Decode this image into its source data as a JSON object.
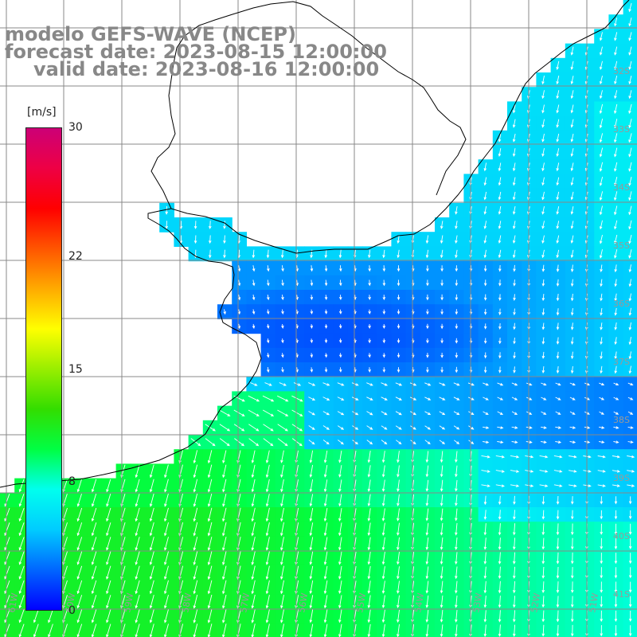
{
  "title": {
    "line1": "modelo GEFS-WAVE (NCEP)",
    "line2": "forecast date: 2023-08-15 12:00:00",
    "line3": "valid date: 2023-08-16 12:00:00"
  },
  "colorbar": {
    "unit": "[m/s]",
    "min": 0,
    "max": 30,
    "tick_labels": [
      "30",
      "22",
      "15",
      "8",
      "0"
    ],
    "tick_values": [
      30,
      22,
      15,
      8,
      0
    ],
    "colors": [
      "#0000ff",
      "#0066ff",
      "#00ccff",
      "#00ffee",
      "#00ff44",
      "#33dd00",
      "#99ee00",
      "#ffff00",
      "#ffaa00",
      "#ff5500",
      "#ff0000",
      "#ee0044",
      "#cc0077"
    ]
  },
  "map": {
    "lat_labels": [
      "32S",
      "33S",
      "34S",
      "35S",
      "36S",
      "37S",
      "38S",
      "39S",
      "40S",
      "41S"
    ],
    "lon_labels": [
      "61W",
      "60W",
      "59W",
      "58W",
      "57W",
      "56W",
      "55W",
      "54W",
      "53W",
      "52W",
      "51W"
    ],
    "colors": {
      "land": "#ffffff",
      "grid": "#888888",
      "coast": "#000000",
      "arrow": "#ffffff",
      "label": "#999999"
    }
  }
}
